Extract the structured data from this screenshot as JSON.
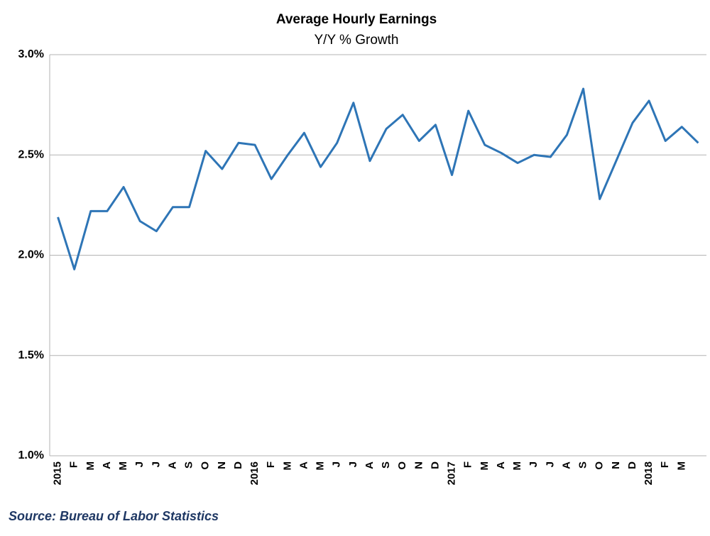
{
  "chart_data": {
    "type": "line",
    "title": "Average Hourly Earnings",
    "subtitle": "Y/Y % Growth",
    "source": "Source: Bureau of Labor Statistics",
    "categories": [
      "2015",
      "F",
      "M",
      "A",
      "M",
      "J",
      "J",
      "A",
      "S",
      "O",
      "N",
      "D",
      "2016",
      "F",
      "M",
      "A",
      "M",
      "J",
      "J",
      "A",
      "S",
      "O",
      "N",
      "D",
      "2017",
      "F",
      "M",
      "A",
      "M",
      "J",
      "J",
      "A",
      "S",
      "O",
      "N",
      "D",
      "2018",
      "F",
      "M",
      null
    ],
    "series": [
      {
        "name": "Average Hourly Earnings",
        "color": "#2E75B6",
        "values": [
          2.19,
          1.93,
          2.22,
          2.22,
          2.34,
          2.17,
          2.12,
          2.24,
          2.24,
          2.52,
          2.43,
          2.56,
          2.55,
          2.38,
          2.5,
          2.61,
          2.44,
          2.56,
          2.76,
          2.47,
          2.63,
          2.7,
          2.57,
          2.65,
          2.4,
          2.72,
          2.55,
          2.51,
          2.46,
          2.5,
          2.49,
          2.6,
          2.83,
          2.28,
          2.47,
          2.66,
          2.77,
          2.57,
          2.64,
          2.56
        ]
      }
    ],
    "ylim": [
      1,
      3
    ],
    "yticks": [
      {
        "value": 1,
        "label": "1.0%"
      },
      {
        "value": 1.5,
        "label": "1.5%"
      },
      {
        "value": 2,
        "label": "2.0%"
      },
      {
        "value": 2.5,
        "label": "2.5%"
      },
      {
        "value": 3,
        "label": "3.0%"
      }
    ],
    "grid": true
  }
}
